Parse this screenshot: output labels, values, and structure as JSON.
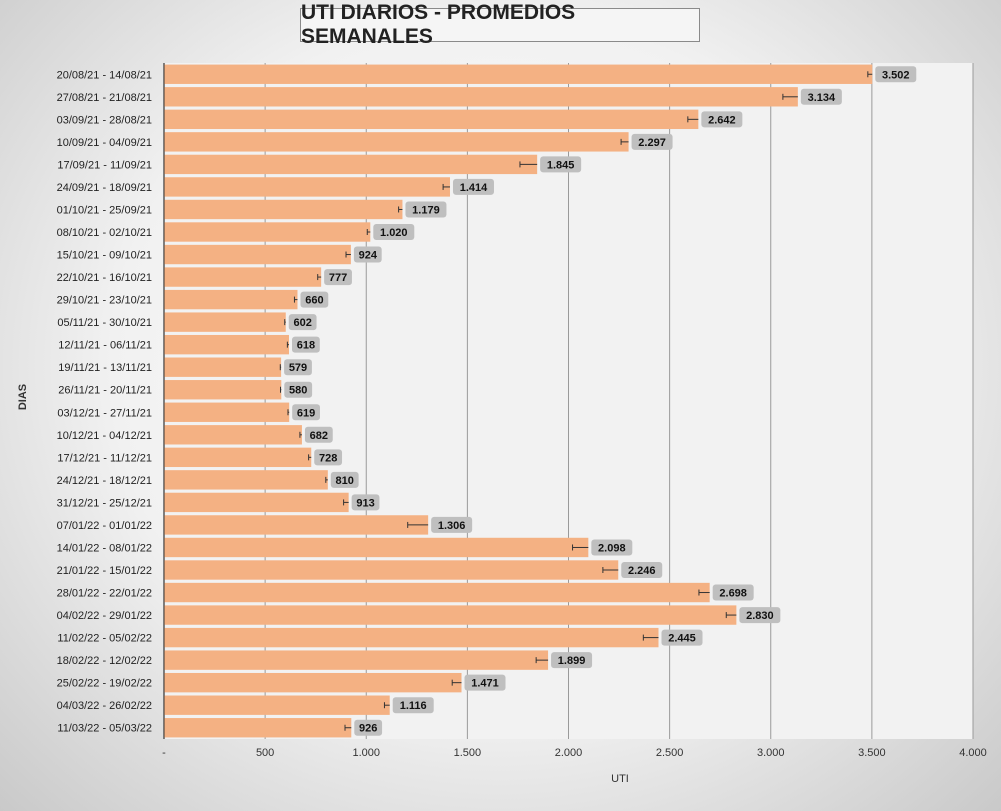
{
  "chart_data": {
    "type": "bar",
    "orientation": "horizontal",
    "title": "UTI DIARIOS - PROMEDIOS SEMANALES",
    "xlabel": "UTI",
    "ylabel": "DIAS",
    "xlim": [
      0,
      4000
    ],
    "x_ticks": [
      "-",
      "500",
      "1.000",
      "1.500",
      "2.000",
      "2.500",
      "3.000",
      "3.500",
      "4.000"
    ],
    "grid": "vertical",
    "error_bars": true,
    "bar_color": "#f4b183",
    "categories": [
      "20/08/21 - 14/08/21",
      "27/08/21 - 21/08/21",
      "03/09/21 - 28/08/21",
      "10/09/21 - 04/09/21",
      "17/09/21 - 11/09/21",
      "24/09/21 - 18/09/21",
      "01/10/21 - 25/09/21",
      "08/10/21 - 02/10/21",
      "15/10/21 - 09/10/21",
      "22/10/21 - 16/10/21",
      "29/10/21 - 23/10/21",
      "05/11/21 - 30/10/21",
      "12/11/21 - 06/11/21",
      "19/11/21 - 13/11/21",
      "26/11/21 - 20/11/21",
      "03/12/21 - 27/11/21",
      "10/12/21 - 04/12/21",
      "17/12/21 - 11/12/21",
      "24/12/21 - 18/12/21",
      "31/12/21 - 25/12/21",
      "07/01/22 - 01/01/22",
      "14/01/22 - 08/01/22",
      "21/01/22 - 15/01/22",
      "28/01/22 - 22/01/22",
      "04/02/22 - 29/01/22",
      "11/02/22 - 05/02/22",
      "18/02/22 - 12/02/22",
      "25/02/22 - 19/02/22",
      "04/03/22 - 26/02/22",
      "11/03/22 - 05/03/22"
    ],
    "values": [
      3502,
      3134,
      2642,
      2297,
      1845,
      1414,
      1179,
      1020,
      924,
      777,
      660,
      602,
      618,
      579,
      580,
      619,
      682,
      728,
      810,
      913,
      1306,
      2098,
      2246,
      2698,
      2830,
      2445,
      1899,
      1471,
      1116,
      926
    ],
    "value_labels": [
      "3.502",
      "3.134",
      "2.642",
      "2.297",
      "1.845",
      "1.414",
      "1.179",
      "1.020",
      "924",
      "777",
      "660",
      "602",
      "618",
      "579",
      "580",
      "619",
      "682",
      "728",
      "810",
      "913",
      "1.306",
      "2.098",
      "2.246",
      "2.698",
      "2.830",
      "2.445",
      "1.899",
      "1.471",
      "1.116",
      "926"
    ],
    "error_low": [
      3480,
      3060,
      2590,
      2260,
      1760,
      1380,
      1160,
      1005,
      900,
      760,
      645,
      597,
      610,
      575,
      576,
      613,
      672,
      715,
      800,
      888,
      1205,
      2020,
      2170,
      2645,
      2780,
      2370,
      1840,
      1425,
      1090,
      895
    ]
  }
}
